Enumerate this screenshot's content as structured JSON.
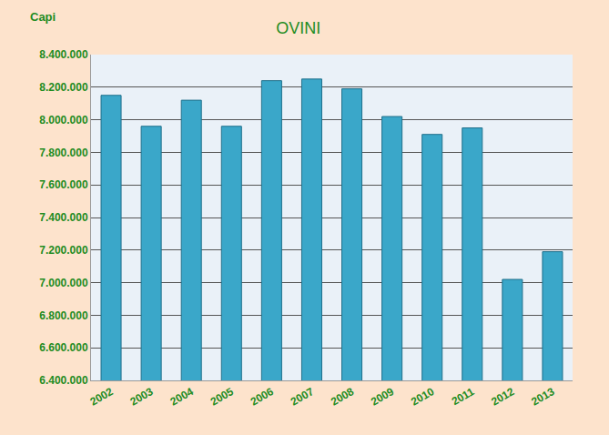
{
  "chart_data": {
    "type": "bar",
    "title": "OVINI",
    "y_label": "Capi",
    "categories": [
      "2002",
      "2003",
      "2004",
      "2005",
      "2006",
      "2007",
      "2008",
      "2009",
      "2010",
      "2011",
      "2012",
      "2013"
    ],
    "values": [
      8150000,
      7960000,
      8120000,
      7960000,
      8240000,
      8250000,
      8190000,
      8020000,
      7910000,
      7950000,
      7020000,
      7190000
    ],
    "color": "#3aa7c9",
    "ylim": [
      6400000,
      8400000
    ],
    "yticks": [
      {
        "value": 6400000,
        "label": "6.400.000"
      },
      {
        "value": 6600000,
        "label": "6.600.000"
      },
      {
        "value": 6800000,
        "label": "6.800.000"
      },
      {
        "value": 7000000,
        "label": "7.000.000"
      },
      {
        "value": 7200000,
        "label": "7.200.000"
      },
      {
        "value": 7400000,
        "label": "7.400.000"
      },
      {
        "value": 7600000,
        "label": "7.600.000"
      },
      {
        "value": 7800000,
        "label": "7.800.000"
      },
      {
        "value": 8000000,
        "label": "8.000.000"
      },
      {
        "value": 8200000,
        "label": "8.200.000"
      },
      {
        "value": 8400000,
        "label": "8.400.000"
      }
    ],
    "grid": true
  }
}
